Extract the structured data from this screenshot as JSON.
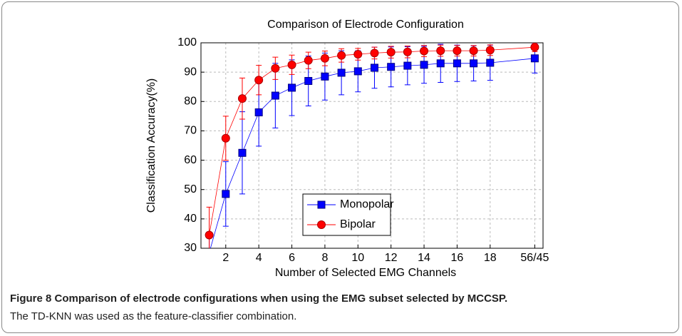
{
  "chart_data": {
    "type": "line",
    "title": "Comparison of Electrode Configuration",
    "xlabel": "Number of Selected EMG Channels",
    "ylabel": "Classification Accuracy(%)",
    "x": [
      1,
      2,
      3,
      4,
      5,
      6,
      7,
      8,
      9,
      10,
      11,
      12,
      13,
      14,
      15,
      16,
      17,
      18,
      20.7
    ],
    "series": [
      {
        "name": "Monopolar",
        "color": "#0000ff",
        "marker": "square",
        "values": [
          28.5,
          48.5,
          62.5,
          76.3,
          82,
          84.7,
          87,
          88.5,
          89.8,
          90.3,
          91.5,
          91.8,
          92.2,
          92.5,
          93,
          93,
          93,
          93.2,
          94.7
        ],
        "errors": [
          5,
          11,
          14,
          11.5,
          11,
          9.5,
          8.5,
          8,
          7.5,
          7,
          7,
          6.8,
          6.5,
          6.3,
          6.5,
          6.2,
          6,
          6,
          5
        ]
      },
      {
        "name": "Bipolar",
        "color": "#ff0000",
        "marker": "circle",
        "values": [
          34.5,
          67.5,
          81,
          87.3,
          91.3,
          92.5,
          94,
          94.7,
          95.7,
          96.1,
          96.5,
          96.8,
          96.9,
          97.2,
          97.3,
          97.3,
          97.3,
          97.5,
          98.5
        ],
        "errors": [
          9.5,
          7.5,
          7,
          5,
          3.8,
          3.3,
          2.8,
          2.5,
          2.3,
          2,
          2,
          2,
          2,
          1.9,
          1.9,
          1.8,
          1.8,
          1.8,
          1.5
        ]
      }
    ],
    "xlim": [
      0.5,
      21.2
    ],
    "xticks": [
      2,
      4,
      6,
      8,
      10,
      12,
      14,
      16,
      18,
      {
        "value": 20.7,
        "label": "56/45"
      }
    ],
    "ylim": [
      30,
      100
    ],
    "yticks": [
      30,
      40,
      50,
      60,
      70,
      80,
      90,
      100
    ],
    "grid": true,
    "legend": "lower center"
  },
  "caption": {
    "title": "Figure 8 Comparison of electrode configurations when using the EMG subset selected by MCCSP.",
    "text": "The TD-KNN was used as the feature-classifier combination."
  }
}
